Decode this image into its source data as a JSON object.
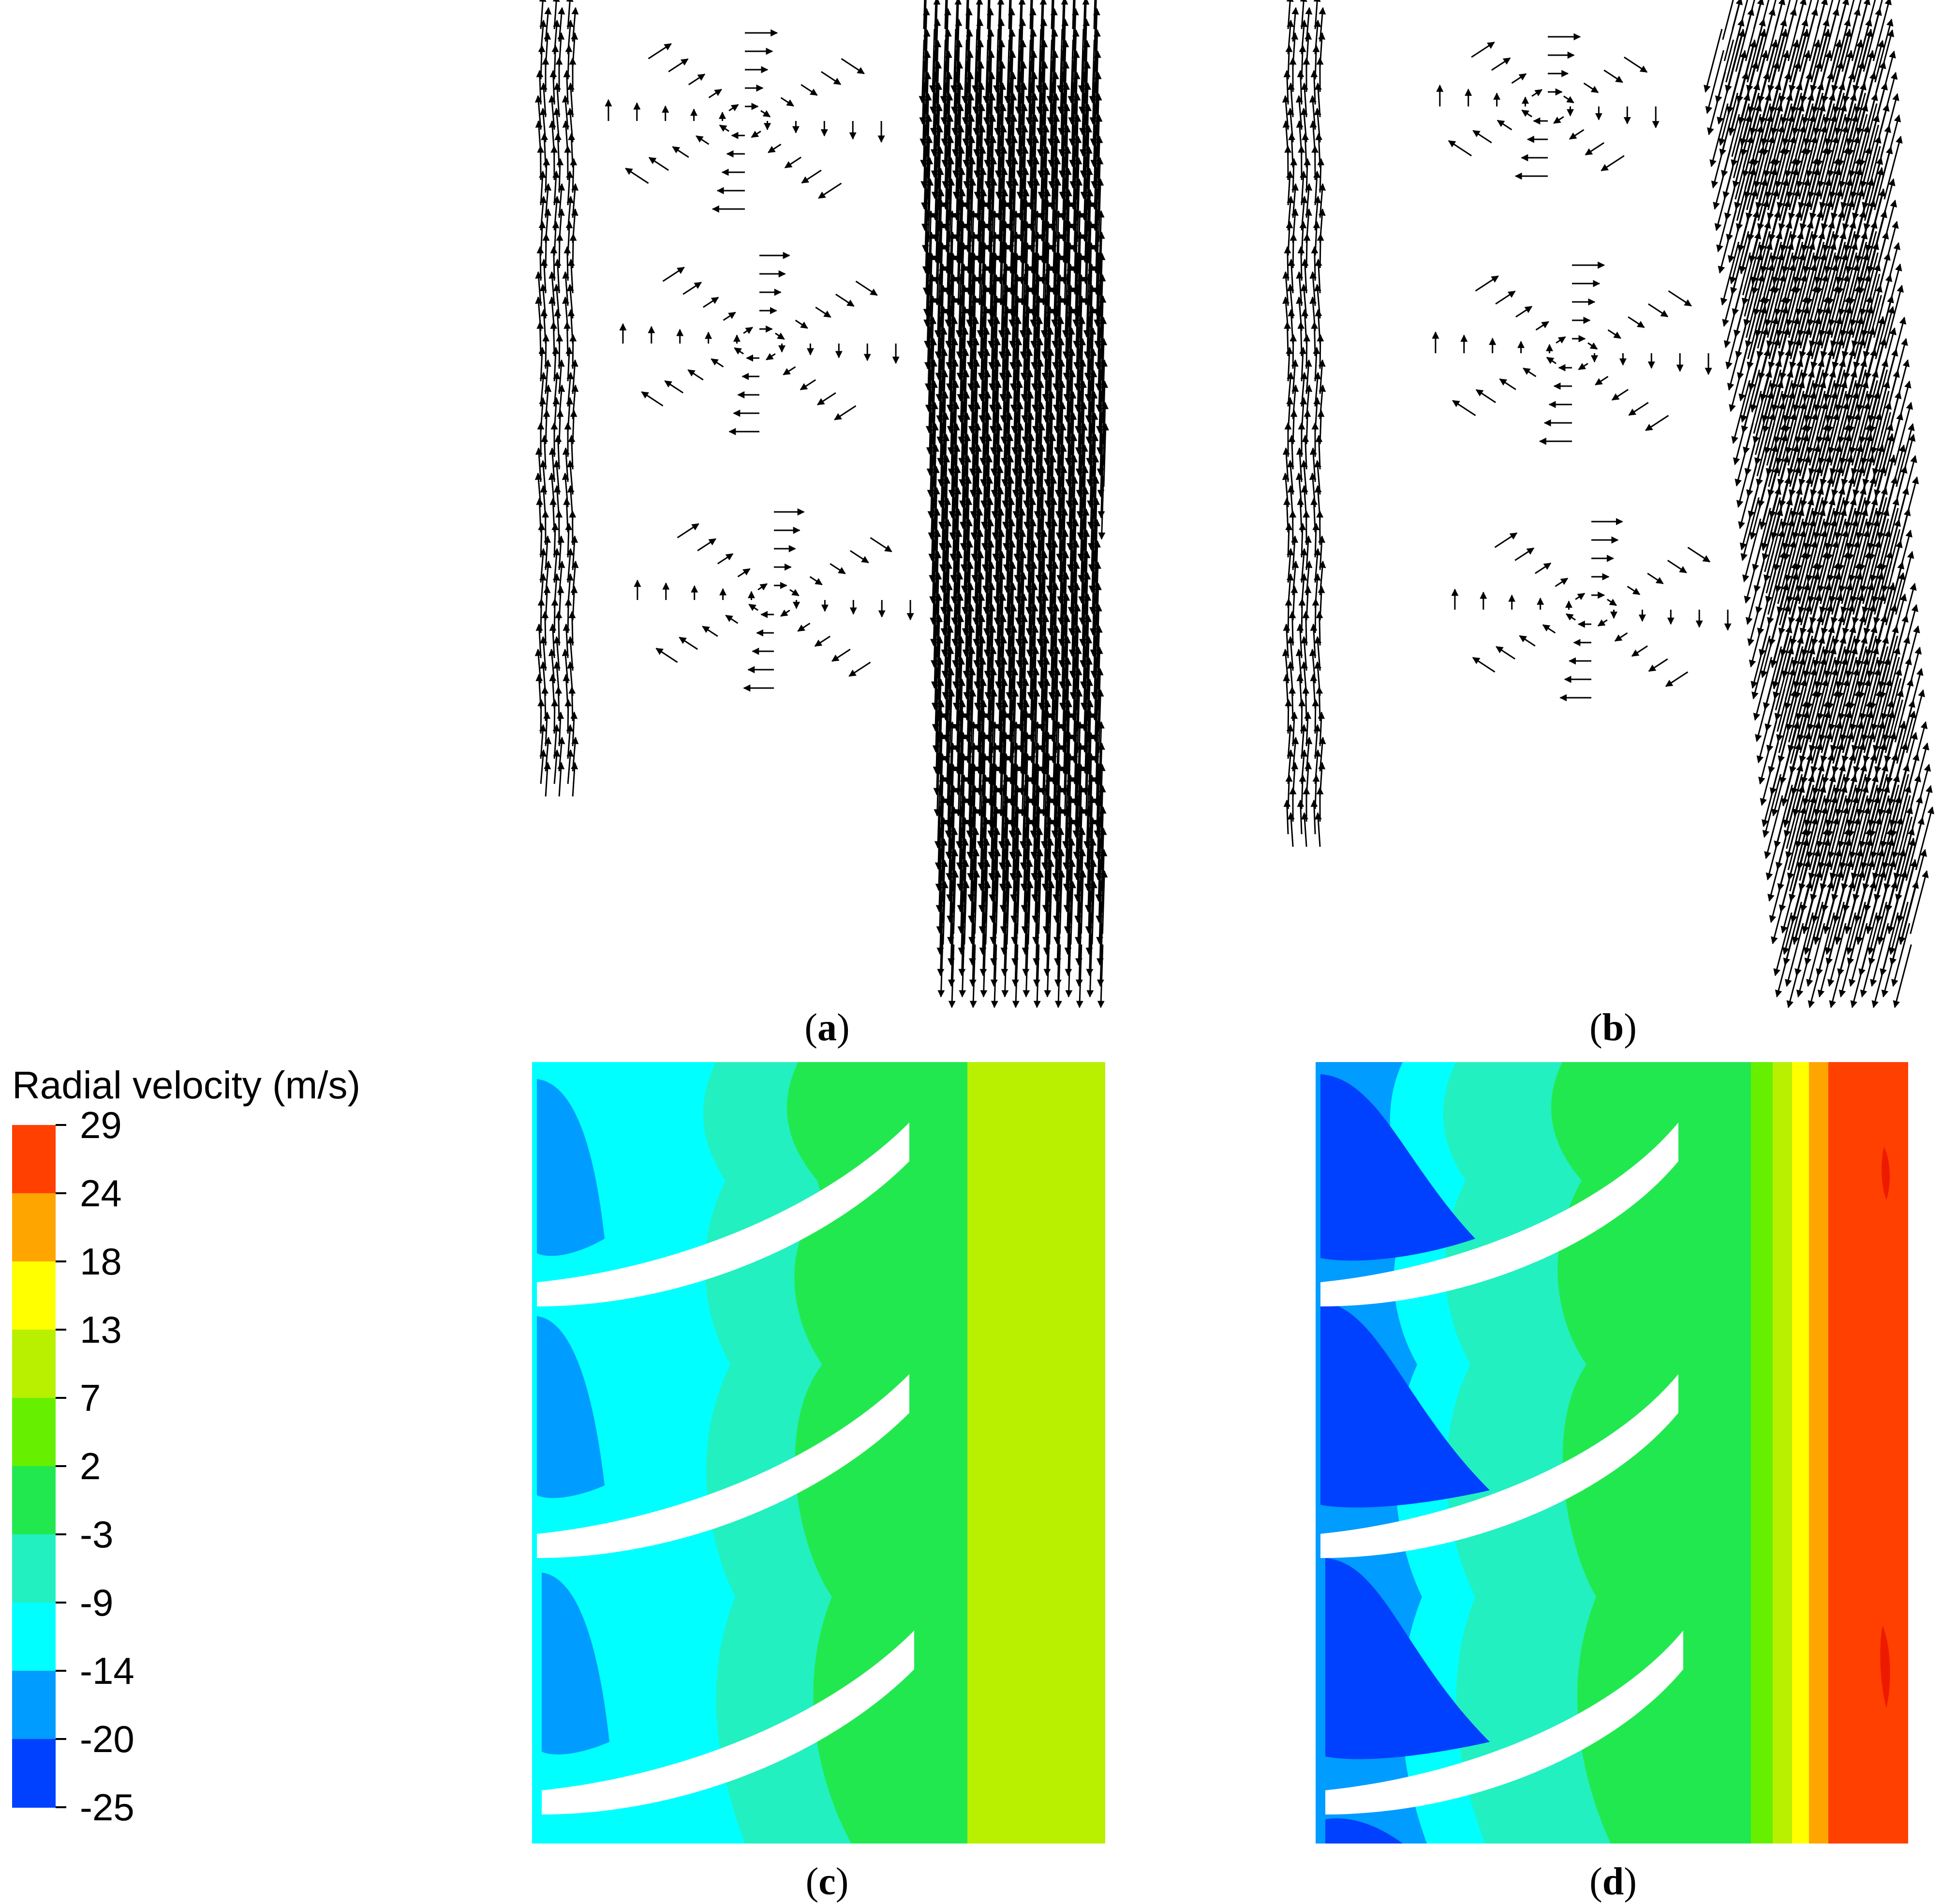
{
  "legend": {
    "title": "Radial velocity (m/s)",
    "levels": [
      "29",
      "24",
      "18",
      "13",
      "7",
      "2",
      "-3",
      "-9",
      "-14",
      "-20",
      "-25"
    ],
    "colors": [
      "#ff4000",
      "#ffa500",
      "#ffff00",
      "#b8f000",
      "#66f000",
      "#22e850",
      "#22f0c0",
      "#00ffff",
      "#009cff",
      "#0040ff"
    ]
  },
  "panels": {
    "a": {
      "open": "(",
      "letter": "a",
      "close": ")"
    },
    "b": {
      "open": "(",
      "letter": "b",
      "close": ")"
    },
    "c": {
      "open": "(",
      "letter": "c",
      "close": ")"
    },
    "d": {
      "open": "(",
      "letter": "d",
      "close": ")"
    }
  }
}
